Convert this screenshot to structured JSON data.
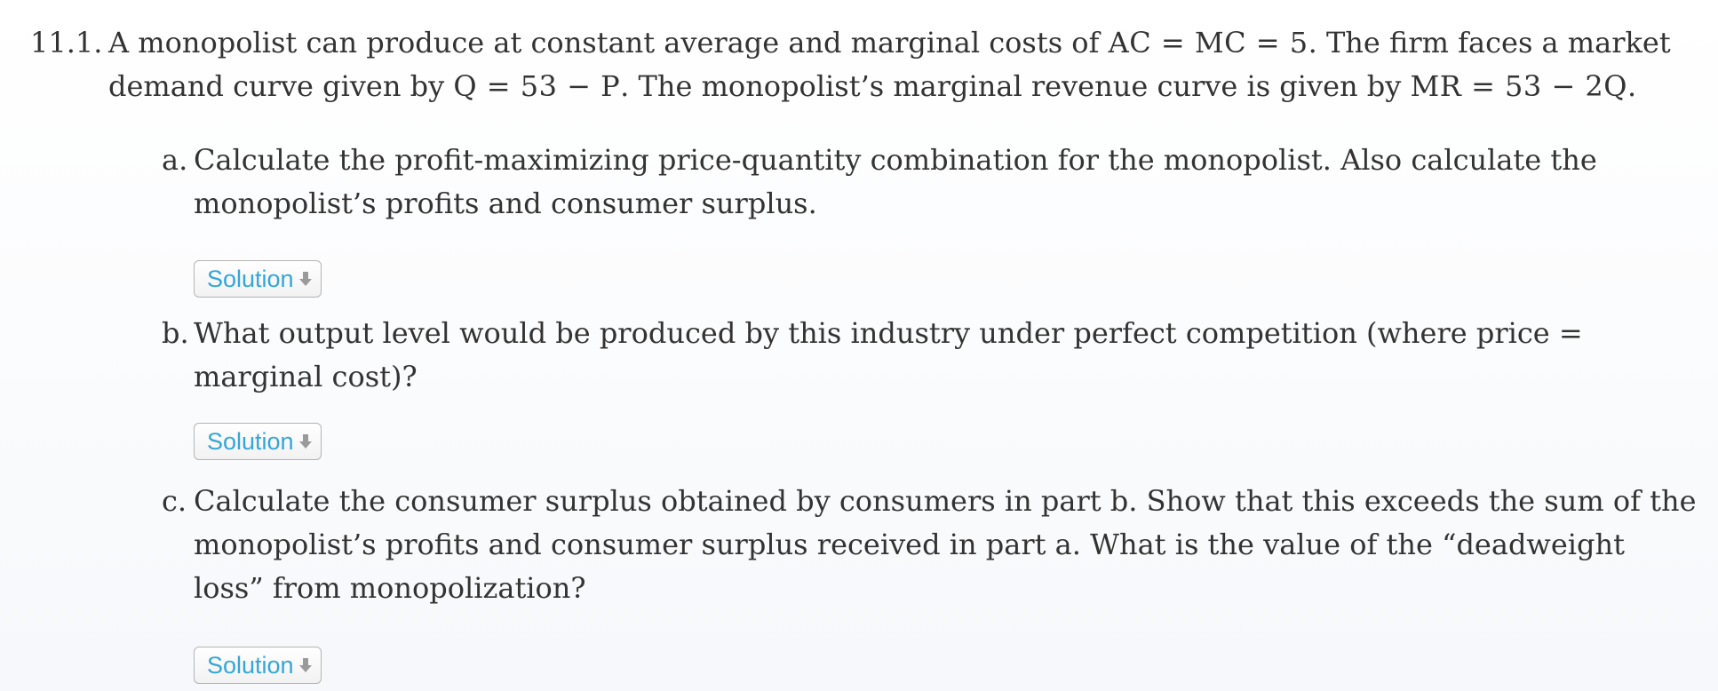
{
  "problem": {
    "number": "11.1.",
    "text_1": "A monopolist can produce at constant average and marginal costs of ",
    "math_1": "AC = MC = 5",
    "text_2": ". The firm faces a market demand curve given by ",
    "math_2": "Q = 53 − P",
    "text_3": ". The monopolist’s marginal revenue curve is given by ",
    "math_3": "MR = 53 − 2Q",
    "text_4": "."
  },
  "parts": [
    {
      "label": "a.",
      "text": "Calculate the profit-maximizing price-quantity combination for the monopolist. Also calculate the monopolist’s profits and consumer surplus.",
      "button_label": "Solution"
    },
    {
      "label": "b.",
      "text": "What output level would be produced by this industry under perfect competition (where price = marginal cost)?",
      "button_label": "Solution"
    },
    {
      "label": "c.",
      "text": "Calculate the consumer surplus obtained by consumers in part b. Show that this exceeds the sum of the monopolist’s profits and consumer surplus received in part a. What is the value of the “deadweight loss” from monopolization?",
      "button_label": "Solution"
    }
  ],
  "icons": {
    "button_icon": "arrow-down-icon",
    "button_text_color": "#34a6d9",
    "button_icon_color": "#9a9a9a"
  }
}
